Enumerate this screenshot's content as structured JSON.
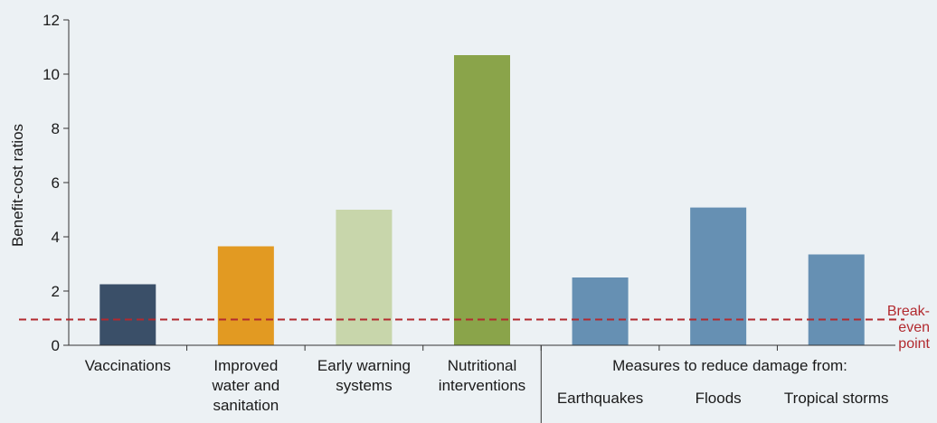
{
  "chart_data": {
    "type": "bar",
    "ylabel": "Benefit-cost ratios",
    "ylim": [
      0,
      12
    ],
    "yticks": [
      0,
      2,
      4,
      6,
      8,
      10,
      12
    ],
    "grid": false,
    "categories": [
      {
        "lines": [
          "Vaccinations"
        ],
        "value": 2.25,
        "color": "#3a4f68"
      },
      {
        "lines": [
          "Improved",
          "water and",
          "sanitation"
        ],
        "value": 3.65,
        "color": "#e29a22"
      },
      {
        "lines": [
          "Early warning",
          "systems"
        ],
        "value": 5.0,
        "color": "#c8d6ab"
      },
      {
        "lines": [
          "Nutritional",
          "interventions"
        ],
        "value": 10.7,
        "color": "#8aa44a"
      },
      {
        "lines": [
          "Earthquakes"
        ],
        "value": 2.5,
        "color": "#6690b3"
      },
      {
        "lines": [
          "Floods"
        ],
        "value": 5.08,
        "color": "#6690b3"
      },
      {
        "lines": [
          "Tropical storms"
        ],
        "value": 3.35,
        "color": "#6690b3"
      }
    ],
    "group_label": "Measures to reduce damage from:",
    "reference_line": {
      "value": 0.95,
      "lines": [
        "Break-",
        "even",
        "point"
      ],
      "color": "#b22a2f"
    }
  }
}
